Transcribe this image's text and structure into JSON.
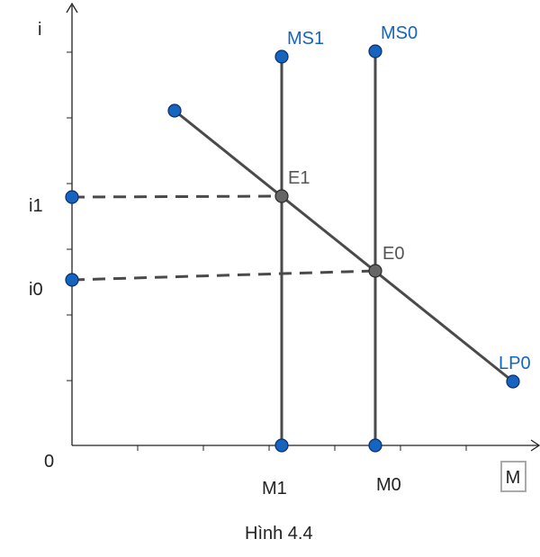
{
  "axes": {
    "y_label": "i",
    "x_label": "M",
    "origin_label": "0"
  },
  "y_ticks": {
    "i1": "i1",
    "i0": "i0"
  },
  "x_ticks": {
    "m1": "M1",
    "m0": "M0"
  },
  "curves": {
    "ms1": "MS1",
    "ms0": "MS0",
    "lp0": "LP0"
  },
  "points": {
    "e1": "E1",
    "e0": "E0"
  },
  "caption": "Hình 4.4",
  "colors": {
    "blue_points": "#1565c0",
    "gray_points": "#666666",
    "lines": "#4a4a4a"
  }
}
